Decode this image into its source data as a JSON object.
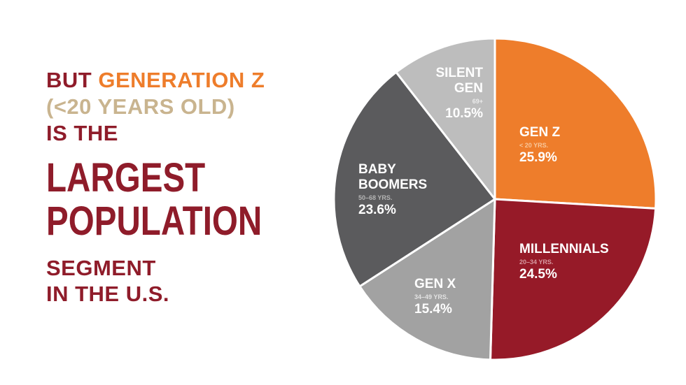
{
  "headline": {
    "line1_prefix": "BUT",
    "line1_highlight": "GENERATION Z",
    "line2": "(<20 YEARS OLD)",
    "line3": "IS THE",
    "line4": "LARGEST",
    "line5": "POPULATION",
    "line6": "SEGMENT",
    "line7": "IN THE U.S."
  },
  "colors": {
    "brand_red": "#8f1c2a",
    "gen_z": "#ee7d2b",
    "millennials": "#961a28",
    "gen_x": "#a2a2a2",
    "baby_boomers": "#5b5b5d",
    "silent_gen": "#bdbdbd",
    "age_tan": "#c9b48f"
  },
  "chart_data": {
    "type": "pie",
    "start_angle_deg": 0,
    "direction": "clockwise",
    "slices": [
      {
        "name_lines": [
          "GEN Z"
        ],
        "age": "< 20 YRS.",
        "value": 25.9,
        "label": "25.9%",
        "color": "#ee7d2b",
        "age_color": "#f8c79b"
      },
      {
        "name_lines": [
          "MILLENNIALS"
        ],
        "age": "20–34 YRS.",
        "value": 24.5,
        "label": "24.5%",
        "color": "#961a28",
        "age_color": "#d79aa1"
      },
      {
        "name_lines": [
          "GEN X"
        ],
        "age": "34–49 YRS.",
        "value": 15.4,
        "label": "15.4%",
        "color": "#a2a2a2",
        "age_color": "#e2e2e2"
      },
      {
        "name_lines": [
          "BABY",
          "BOOMERS"
        ],
        "age": "50–68 YRS.",
        "value": 23.6,
        "label": "23.6%",
        "color": "#5b5b5d",
        "age_color": "#b4b4b4"
      },
      {
        "name_lines": [
          "SILENT",
          "GEN"
        ],
        "age": "69+",
        "value": 10.5,
        "label": "10.5%",
        "color": "#bdbdbd",
        "age_color": "#ececec"
      }
    ]
  }
}
